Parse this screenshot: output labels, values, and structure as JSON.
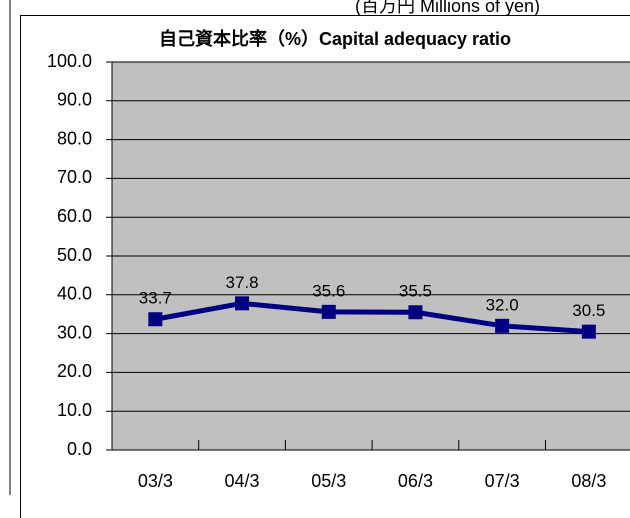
{
  "unit_note": "(百万円 Millions of yen)",
  "chart_data": {
    "type": "line",
    "title": "自己資本比率（%）Capital adequacy ratio",
    "categories": [
      "03/3",
      "04/3",
      "05/3",
      "06/3",
      "07/3",
      "08/3"
    ],
    "series": [
      {
        "name": "Capital adequacy ratio",
        "color": "#000080",
        "values": [
          33.7,
          37.8,
          35.6,
          35.5,
          32.0,
          30.5
        ],
        "value_labels": [
          "33.7",
          "37.8",
          "35.6",
          "35.5",
          "32.0",
          "30.5"
        ]
      }
    ],
    "ylim": [
      0,
      100
    ],
    "yticks": [
      {
        "value": 0,
        "label": "0.0"
      },
      {
        "value": 10,
        "label": "10.0"
      },
      {
        "value": 20,
        "label": "20.0"
      },
      {
        "value": 30,
        "label": "30.0"
      },
      {
        "value": 40,
        "label": "40.0"
      },
      {
        "value": 50,
        "label": "50.0"
      },
      {
        "value": 60,
        "label": "60.0"
      },
      {
        "value": 70,
        "label": "70.0"
      },
      {
        "value": 80,
        "label": "80.0"
      },
      {
        "value": 90,
        "label": "90.0"
      },
      {
        "value": 100,
        "label": "100.0"
      }
    ],
    "grid": true,
    "plot_background": "#c0c0c0"
  }
}
